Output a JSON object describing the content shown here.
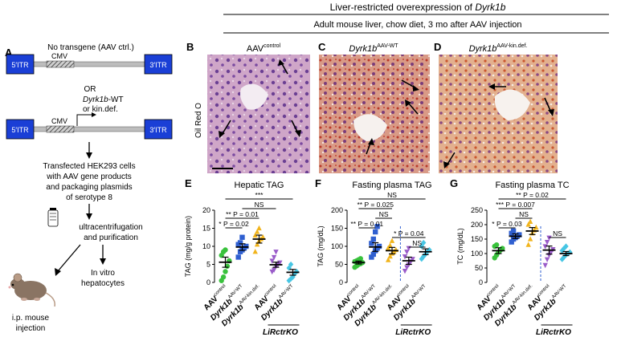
{
  "header": {
    "title_plain": "Liver-restricted overexpression of ",
    "title_gene": "Dyrk1b",
    "subtitle": "Adult mouse liver, chow diet, 3 mo after AAV injection"
  },
  "panel_a": {
    "label": "A",
    "construct1": {
      "title": "No transgene (AAV ctrl.)",
      "left_itr": "5′ITR",
      "promoter": "CMV",
      "right_itr": "3′ITR"
    },
    "or_text": "OR",
    "construct2": {
      "gene": "Dyrk1b",
      "gene_suffix": "-WT",
      "gene_line2": "or kin.def.",
      "left_itr": "5′ITR",
      "promoter": "CMV",
      "right_itr": "3′ITR"
    },
    "step1": [
      "Transfected HEK293 cells",
      "with AAV gene products",
      "and packaging plasmids",
      "of serotype 8"
    ],
    "step2": [
      "ultracentrifugation",
      "and purification"
    ],
    "out1": [
      "i.p. mouse",
      "injection"
    ],
    "out2": [
      "In vitro",
      "hepatocytes"
    ]
  },
  "histology": {
    "side_label": "Oil Red O",
    "panels": [
      {
        "letter": "B",
        "name": "AAV",
        "sup": "control",
        "italic": false
      },
      {
        "letter": "C",
        "name": "Dyrk1b",
        "sup": "AAV-WT",
        "italic": true
      },
      {
        "letter": "D",
        "name": "Dyrk1b",
        "sup": "AAV-kin.def.",
        "italic": true
      }
    ]
  },
  "charts": [
    {
      "letter": "E",
      "title": "Hepatic TAG",
      "ylabel": "TAG (mg/g protein)"
    },
    {
      "letter": "F",
      "title": "Fasting plasma TAG",
      "ylabel": "TAG (mg/dL)"
    },
    {
      "letter": "G",
      "title": "Fasting plasma TC",
      "ylabel": "TC (mg/dL)"
    }
  ],
  "xcats": [
    {
      "name": "AAV",
      "sup": "control",
      "italic": false
    },
    {
      "name": "Dyrk1b",
      "sup": "AAV-WT",
      "italic": true
    },
    {
      "name": "Dyrk1b",
      "sup": "AAV-kin.def.",
      "italic": true
    },
    {
      "name": "AAV",
      "sup": "control",
      "italic": false
    },
    {
      "name": "Dyrk1b",
      "sup": "AAV-WT",
      "italic": true
    }
  ],
  "group_label": "LiRctrKO",
  "chart_data": [
    {
      "type": "scatter",
      "panel": "E",
      "title": "Hepatic TAG",
      "ylabel": "TAG (mg/g protein)",
      "ylim": [
        0,
        20
      ],
      "yticks": [
        0,
        5,
        10,
        15,
        20
      ],
      "categories": [
        "AAV control",
        "Dyrk1b AAV-WT",
        "Dyrk1b AAV-kin.def.",
        "LiRctrKO AAV control",
        "LiRctrKO Dyrk1b AAV-WT"
      ],
      "means": [
        5.6,
        9.8,
        12.0,
        4.9,
        2.8
      ],
      "errors": [
        1.4,
        0.9,
        1.1,
        0.7,
        0.8
      ],
      "points": [
        [
          0.5,
          1.5,
          3.0,
          4.5,
          6.0,
          7.5,
          8.5,
          9.0
        ],
        [
          7.0,
          8.5,
          9.0,
          9.5,
          10.0,
          10.5,
          11.0,
          12.5
        ],
        [
          8.5,
          10.5,
          11.5,
          12.0,
          12.5,
          13.0,
          14.0,
          15.0
        ],
        [
          3.0,
          3.5,
          4.5,
          5.0,
          5.5,
          6.0,
          7.0,
          8.5
        ],
        [
          0.5,
          1.0,
          1.5,
          2.5,
          3.0,
          4.0,
          5.0
        ]
      ],
      "colors": [
        "#39c23c",
        "#2f5fd0",
        "#f1b41c",
        "#9a5cc9",
        "#47c6e4"
      ],
      "markers": [
        "circle",
        "square",
        "triangle",
        "triangle-down",
        "diamond"
      ],
      "comparisons": [
        {
          "a": 0,
          "b": 4,
          "text": "***"
        },
        {
          "a": 1,
          "b": 3,
          "text": "NS"
        },
        {
          "a": 0,
          "b": 2,
          "text": "** P = 0.01"
        },
        {
          "a": 0,
          "b": 1,
          "text": "* P = 0.02"
        }
      ]
    },
    {
      "type": "scatter",
      "panel": "F",
      "title": "Fasting plasma TAG",
      "ylabel": "TAG (mg/dL)",
      "ylim": [
        0,
        200
      ],
      "yticks": [
        0,
        50,
        100,
        150,
        200
      ],
      "categories": [
        "AAV control",
        "Dyrk1b AAV-WT",
        "Dyrk1b AAV-kin.def.",
        "LiRctrKO AAV control",
        "LiRctrKO Dyrk1b AAV-WT"
      ],
      "means": [
        55,
        98,
        88,
        60,
        85
      ],
      "errors": [
        4,
        12,
        9,
        10,
        8
      ],
      "points": [
        [
          42,
          46,
          50,
          52,
          55,
          58,
          60,
          63,
          66
        ],
        [
          70,
          78,
          88,
          95,
          100,
          108,
          120,
          140,
          155
        ],
        [
          62,
          72,
          80,
          85,
          90,
          95,
          102,
          115
        ],
        [
          32,
          42,
          50,
          58,
          65,
          72,
          85,
          95
        ],
        [
          65,
          72,
          78,
          85,
          90,
          100,
          110
        ]
      ],
      "colors": [
        "#39c23c",
        "#2f5fd0",
        "#f1b41c",
        "#9a5cc9",
        "#47c6e4"
      ],
      "markers": [
        "circle",
        "square",
        "triangle",
        "triangle-down",
        "diamond"
      ],
      "comparisons": [
        {
          "a": 0,
          "b": 4,
          "text": "NS"
        },
        {
          "a": 0,
          "b": 2,
          "text": "** P = 0.025"
        },
        {
          "a": 1,
          "b": 2,
          "text": "NS"
        },
        {
          "a": 0,
          "b": 1,
          "text": "** P = 0.01"
        },
        {
          "a": 2,
          "b": 4,
          "text": "* P = 0.04"
        },
        {
          "a": 3,
          "b": 4,
          "text": "NS"
        }
      ],
      "divider_after": 2
    },
    {
      "type": "scatter",
      "panel": "G",
      "title": "Fasting plasma TC",
      "ylabel": "TC (mg/dL)",
      "ylim": [
        0,
        250
      ],
      "yticks": [
        0,
        50,
        100,
        150,
        200,
        250
      ],
      "categories": [
        "AAV control",
        "Dyrk1b AAV-WT",
        "Dyrk1b AAV-kin.def.",
        "LiRctrKO AAV control",
        "LiRctrKO Dyrk1b AAV-WT"
      ],
      "means": [
        110,
        160,
        178,
        112,
        100
      ],
      "errors": [
        10,
        8,
        12,
        14,
        7
      ],
      "points": [
        [
          85,
          95,
          105,
          112,
          118,
          125,
          130
        ],
        [
          140,
          150,
          155,
          160,
          165,
          170,
          178
        ],
        [
          130,
          150,
          170,
          180,
          190,
          200,
          210
        ],
        [
          60,
          80,
          95,
          105,
          115,
          125,
          140,
          155
        ],
        [
          80,
          88,
          95,
          100,
          105,
          110,
          118,
          125
        ]
      ],
      "colors": [
        "#39c23c",
        "#2f5fd0",
        "#f1b41c",
        "#9a5cc9",
        "#47c6e4"
      ],
      "markers": [
        "circle",
        "square",
        "triangle",
        "triangle-down",
        "diamond"
      ],
      "comparisons": [
        {
          "a": 0,
          "b": 4,
          "text": "** P = 0.02"
        },
        {
          "a": 0,
          "b": 2,
          "text": "*** P = 0.007"
        },
        {
          "a": 1,
          "b": 2,
          "text": "NS"
        },
        {
          "a": 0,
          "b": 1,
          "text": "* P = 0.03"
        },
        {
          "a": 3,
          "b": 4,
          "text": "NS"
        }
      ],
      "divider_after": 2
    }
  ]
}
